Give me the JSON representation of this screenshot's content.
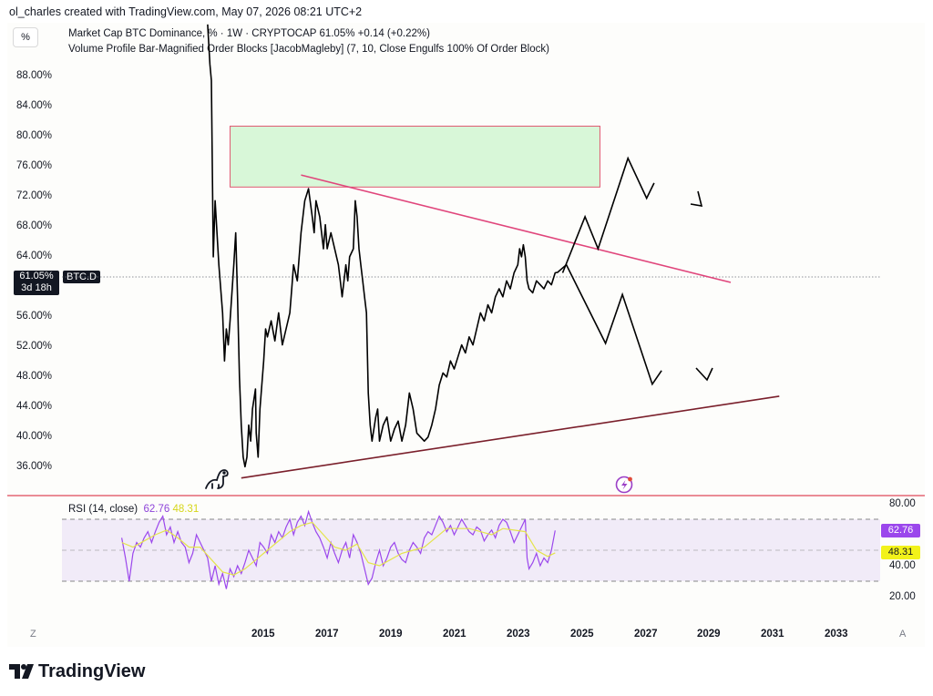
{
  "header": {
    "credit": "ol_charles created with TradingView.com, May 07, 2026 08:21 UTC+2"
  },
  "toolbar": {
    "percent_label": "%"
  },
  "legend": {
    "line1": "Market Cap BTC Dominance, % · 1W · CRYPTOCAP  61.05%  +0.14 (+0.22%)",
    "line2": "Volume Profile Bar-Magnified Order Blocks [JacobMagleby] (7, 10, Close Engulfs 100% Of Order Block)"
  },
  "price_badge": {
    "value": "61.05%",
    "countdown": "3d 18h",
    "symbol": "BTC.D"
  },
  "y_ticks": [
    "88.00%",
    "84.00%",
    "80.00%",
    "76.00%",
    "72.00%",
    "68.00%",
    "64.00%",
    "56.00%",
    "52.00%",
    "48.00%",
    "44.00%",
    "40.00%",
    "36.00%"
  ],
  "x_ticks": [
    "2015",
    "2017",
    "2019",
    "2021",
    "2023",
    "2025",
    "2027",
    "2029",
    "2031",
    "2033"
  ],
  "rsi": {
    "label": "RSI (14, close)",
    "value_rsi": "62.76",
    "value_ma": "48.31",
    "ticks": [
      "80.00",
      "40.00",
      "20.00"
    ],
    "upper_band": 70,
    "middle_band": 50,
    "lower_band": 30
  },
  "buttons": {
    "z": "Z",
    "a": "A"
  },
  "brand": {
    "name": "TradingView"
  },
  "colors": {
    "price_line": "#000000",
    "order_block_fill": "#d8f7d8",
    "order_block_border": "#e05a72",
    "resistance_line": "#e0457b",
    "support_line": "#7a1f2b",
    "rsi_line": "#9b47ec",
    "rsi_ma_line": "#e4e44a",
    "divider": "#e04a5a"
  },
  "chart_data": {
    "type": "line",
    "title": "Market Cap BTC Dominance, % · 1W · CRYPTOCAP",
    "ylabel": "",
    "xlabel": "",
    "ylim": [
      33.2,
      92.2
    ],
    "xlim": [
      2013.1,
      2035.0
    ],
    "series": [
      {
        "name": "BTC.D",
        "points": [
          [
            2017.0,
            92.0
          ],
          [
            2017.06,
            87.0
          ],
          [
            2017.1,
            85.0
          ],
          [
            2017.15,
            63.0
          ],
          [
            2017.2,
            70.0
          ],
          [
            2017.3,
            62.0
          ],
          [
            2017.4,
            56.0
          ],
          [
            2017.45,
            50.0
          ],
          [
            2017.5,
            54.0
          ],
          [
            2017.55,
            52.0
          ],
          [
            2017.6,
            55.0
          ],
          [
            2017.7,
            62.0
          ],
          [
            2017.75,
            66.0
          ],
          [
            2017.8,
            58.0
          ],
          [
            2017.85,
            48.0
          ],
          [
            2017.9,
            42.0
          ],
          [
            2017.95,
            38.0
          ],
          [
            2018.0,
            36.8
          ],
          [
            2018.05,
            38.0
          ],
          [
            2018.1,
            42.0
          ],
          [
            2018.15,
            40.0
          ],
          [
            2018.2,
            44.0
          ],
          [
            2018.28,
            46.5
          ],
          [
            2018.3,
            41.0
          ],
          [
            2018.35,
            38.0
          ],
          [
            2018.4,
            44.0
          ],
          [
            2018.5,
            50.0
          ],
          [
            2018.55,
            54.0
          ],
          [
            2018.6,
            53.0
          ],
          [
            2018.7,
            55.0
          ],
          [
            2018.8,
            52.5
          ],
          [
            2018.9,
            56.0
          ],
          [
            2019.0,
            52.0
          ],
          [
            2019.1,
            54.0
          ],
          [
            2019.2,
            56.0
          ],
          [
            2019.25,
            59.0
          ],
          [
            2019.3,
            62.0
          ],
          [
            2019.4,
            60.0
          ],
          [
            2019.5,
            66.0
          ],
          [
            2019.6,
            70.0
          ],
          [
            2019.7,
            71.5
          ],
          [
            2019.8,
            68.0
          ],
          [
            2019.85,
            66.0
          ],
          [
            2019.9,
            70.0
          ],
          [
            2020.0,
            68.0
          ],
          [
            2020.1,
            64.0
          ],
          [
            2020.15,
            67.0
          ],
          [
            2020.2,
            64.0
          ],
          [
            2020.3,
            66.0
          ],
          [
            2020.4,
            64.0
          ],
          [
            2020.5,
            62.0
          ],
          [
            2020.55,
            60.0
          ],
          [
            2020.6,
            58.0
          ],
          [
            2020.7,
            62.0
          ],
          [
            2020.75,
            60.0
          ],
          [
            2020.8,
            63.0
          ],
          [
            2020.9,
            64.0
          ],
          [
            2020.95,
            70.0
          ],
          [
            2021.0,
            68.0
          ],
          [
            2021.05,
            64.0
          ],
          [
            2021.1,
            62.0
          ],
          [
            2021.15,
            60.0
          ],
          [
            2021.2,
            58.0
          ],
          [
            2021.25,
            56.0
          ],
          [
            2021.3,
            46.0
          ],
          [
            2021.35,
            42.0
          ],
          [
            2021.4,
            40.0
          ],
          [
            2021.5,
            43.0
          ],
          [
            2021.55,
            44.0
          ],
          [
            2021.6,
            40.0
          ],
          [
            2021.7,
            42.0
          ],
          [
            2021.8,
            43.0
          ],
          [
            2021.9,
            40.0
          ],
          [
            2022.0,
            41.5
          ],
          [
            2022.1,
            42.5
          ],
          [
            2022.2,
            40.0
          ],
          [
            2022.3,
            42.0
          ],
          [
            2022.4,
            46.0
          ],
          [
            2022.5,
            44.0
          ],
          [
            2022.6,
            41.0
          ],
          [
            2022.7,
            40.5
          ],
          [
            2022.8,
            40.0
          ],
          [
            2022.9,
            40.5
          ],
          [
            2023.0,
            42.0
          ],
          [
            2023.1,
            44.0
          ],
          [
            2023.2,
            47.0
          ],
          [
            2023.3,
            48.5
          ],
          [
            2023.4,
            48.0
          ],
          [
            2023.5,
            50.0
          ],
          [
            2023.6,
            49.0
          ],
          [
            2023.7,
            50.5
          ],
          [
            2023.8,
            52.0
          ],
          [
            2023.9,
            51.0
          ],
          [
            2024.0,
            53.0
          ],
          [
            2024.1,
            52.0
          ],
          [
            2024.2,
            54.0
          ],
          [
            2024.3,
            56.0
          ],
          [
            2024.4,
            55.0
          ],
          [
            2024.5,
            57.0
          ],
          [
            2024.6,
            56.0
          ],
          [
            2024.7,
            58.0
          ],
          [
            2024.8,
            59.0
          ],
          [
            2024.9,
            58.0
          ],
          [
            2025.0,
            60.0
          ],
          [
            2025.1,
            59.0
          ],
          [
            2025.2,
            61.0
          ],
          [
            2025.3,
            62.0
          ],
          [
            2025.35,
            64.0
          ],
          [
            2025.4,
            63.0
          ],
          [
            2025.45,
            64.5
          ],
          [
            2025.5,
            63.0
          ],
          [
            2025.55,
            60.0
          ],
          [
            2025.6,
            59.0
          ],
          [
            2025.7,
            58.5
          ],
          [
            2025.8,
            60.0
          ],
          [
            2025.9,
            59.5
          ],
          [
            2026.0,
            59.0
          ],
          [
            2026.1,
            60.0
          ],
          [
            2026.2,
            59.5
          ],
          [
            2026.3,
            61.0
          ],
          [
            2026.35,
            61.05
          ]
        ]
      }
    ],
    "drawings": {
      "order_block": {
        "x": [
          2017.6,
          2027.5
        ],
        "y": [
          71.7,
          79.3
        ]
      },
      "resistance": {
        "from": [
          2019.5,
          73.2
        ],
        "to": [
          2031.0,
          59.8
        ]
      },
      "support": {
        "from": [
          2017.9,
          35.4
        ],
        "to": [
          2032.3,
          45.6
        ]
      },
      "projection_up": [
        [
          2026.5,
          61.0
        ],
        [
          2027.1,
          68.0
        ],
        [
          2027.45,
          64.0
        ],
        [
          2028.25,
          75.3
        ],
        [
          2028.75,
          70.3
        ],
        [
          2028.95,
          72.2
        ]
      ],
      "projection_down": [
        [
          2026.35,
          61.0
        ],
        [
          2026.6,
          62.0
        ],
        [
          2027.65,
          52.2
        ],
        [
          2028.1,
          58.3
        ],
        [
          2028.9,
          47.1
        ],
        [
          2029.15,
          48.8
        ]
      ]
    },
    "rsi_series": {
      "name": "RSI (14, close)",
      "ylim": [
        10,
        85
      ],
      "points": [
        [
          2014.7,
          58
        ],
        [
          2014.8,
          45
        ],
        [
          2014.9,
          30
        ],
        [
          2015.0,
          48
        ],
        [
          2015.1,
          55
        ],
        [
          2015.2,
          52
        ],
        [
          2015.3,
          58
        ],
        [
          2015.4,
          62
        ],
        [
          2015.5,
          55
        ],
        [
          2015.6,
          62
        ],
        [
          2015.7,
          68
        ],
        [
          2015.8,
          72
        ],
        [
          2015.9,
          60
        ],
        [
          2016.0,
          65
        ],
        [
          2016.1,
          55
        ],
        [
          2016.2,
          62
        ],
        [
          2016.3,
          55
        ],
        [
          2016.4,
          52
        ],
        [
          2016.5,
          42
        ],
        [
          2016.6,
          48
        ],
        [
          2016.7,
          60
        ],
        [
          2016.8,
          55
        ],
        [
          2016.9,
          50
        ],
        [
          2017.0,
          45
        ],
        [
          2017.1,
          30
        ],
        [
          2017.2,
          40
        ],
        [
          2017.3,
          28
        ],
        [
          2017.4,
          35
        ],
        [
          2017.5,
          25
        ],
        [
          2017.6,
          38
        ],
        [
          2017.7,
          33
        ],
        [
          2017.8,
          40
        ],
        [
          2017.9,
          35
        ],
        [
          2018.0,
          42
        ],
        [
          2018.1,
          50
        ],
        [
          2018.2,
          45
        ],
        [
          2018.3,
          40
        ],
        [
          2018.4,
          55
        ],
        [
          2018.5,
          52
        ],
        [
          2018.6,
          48
        ],
        [
          2018.7,
          60
        ],
        [
          2018.8,
          55
        ],
        [
          2018.9,
          62
        ],
        [
          2019.0,
          58
        ],
        [
          2019.1,
          65
        ],
        [
          2019.2,
          70
        ],
        [
          2019.3,
          60
        ],
        [
          2019.4,
          68
        ],
        [
          2019.5,
          72
        ],
        [
          2019.6,
          66
        ],
        [
          2019.7,
          75
        ],
        [
          2019.8,
          68
        ],
        [
          2019.9,
          62
        ],
        [
          2020.0,
          58
        ],
        [
          2020.1,
          52
        ],
        [
          2020.2,
          45
        ],
        [
          2020.3,
          55
        ],
        [
          2020.4,
          48
        ],
        [
          2020.5,
          42
        ],
        [
          2020.6,
          50
        ],
        [
          2020.7,
          55
        ],
        [
          2020.8,
          45
        ],
        [
          2020.9,
          60
        ],
        [
          2021.0,
          55
        ],
        [
          2021.1,
          48
        ],
        [
          2021.2,
          38
        ],
        [
          2021.3,
          28
        ],
        [
          2021.4,
          32
        ],
        [
          2021.5,
          42
        ],
        [
          2021.6,
          50
        ],
        [
          2021.7,
          40
        ],
        [
          2021.8,
          45
        ],
        [
          2021.9,
          52
        ],
        [
          2022.0,
          55
        ],
        [
          2022.1,
          48
        ],
        [
          2022.2,
          44
        ],
        [
          2022.3,
          42
        ],
        [
          2022.4,
          50
        ],
        [
          2022.5,
          55
        ],
        [
          2022.6,
          52
        ],
        [
          2022.7,
          48
        ],
        [
          2022.8,
          58
        ],
        [
          2022.9,
          62
        ],
        [
          2023.0,
          60
        ],
        [
          2023.1,
          66
        ],
        [
          2023.2,
          72
        ],
        [
          2023.3,
          68
        ],
        [
          2023.4,
          62
        ],
        [
          2023.5,
          66
        ],
        [
          2023.6,
          60
        ],
        [
          2023.7,
          65
        ],
        [
          2023.8,
          70
        ],
        [
          2023.9,
          66
        ],
        [
          2024.0,
          62
        ],
        [
          2024.1,
          60
        ],
        [
          2024.2,
          65
        ],
        [
          2024.3,
          63
        ],
        [
          2024.4,
          56
        ],
        [
          2024.5,
          60
        ],
        [
          2024.6,
          63
        ],
        [
          2024.7,
          58
        ],
        [
          2024.8,
          66
        ],
        [
          2024.9,
          70
        ],
        [
          2025.0,
          68
        ],
        [
          2025.1,
          62
        ],
        [
          2025.2,
          55
        ],
        [
          2025.3,
          60
        ],
        [
          2025.4,
          65
        ],
        [
          2025.5,
          70
        ],
        [
          2025.55,
          45
        ],
        [
          2025.6,
          38
        ],
        [
          2025.7,
          42
        ],
        [
          2025.8,
          48
        ],
        [
          2025.9,
          40
        ],
        [
          2026.0,
          45
        ],
        [
          2026.1,
          42
        ],
        [
          2026.2,
          50
        ],
        [
          2026.3,
          62.76
        ]
      ],
      "ma_points": [
        [
          2014.7,
          55
        ],
        [
          2015.0,
          52
        ],
        [
          2015.3,
          56
        ],
        [
          2015.6,
          60
        ],
        [
          2015.9,
          63
        ],
        [
          2016.2,
          58
        ],
        [
          2016.5,
          52
        ],
        [
          2016.8,
          52
        ],
        [
          2017.1,
          44
        ],
        [
          2017.4,
          36
        ],
        [
          2017.7,
          34
        ],
        [
          2018.0,
          38
        ],
        [
          2018.3,
          44
        ],
        [
          2018.6,
          50
        ],
        [
          2018.9,
          56
        ],
        [
          2019.2,
          62
        ],
        [
          2019.5,
          66
        ],
        [
          2019.8,
          68
        ],
        [
          2020.1,
          60
        ],
        [
          2020.4,
          52
        ],
        [
          2020.7,
          50
        ],
        [
          2021.0,
          54
        ],
        [
          2021.3,
          42
        ],
        [
          2021.6,
          40
        ],
        [
          2021.9,
          44
        ],
        [
          2022.2,
          48
        ],
        [
          2022.5,
          50
        ],
        [
          2022.8,
          52
        ],
        [
          2023.1,
          58
        ],
        [
          2023.4,
          64
        ],
        [
          2023.7,
          64
        ],
        [
          2024.0,
          64
        ],
        [
          2024.3,
          62
        ],
        [
          2024.6,
          60
        ],
        [
          2024.9,
          64
        ],
        [
          2025.2,
          63
        ],
        [
          2025.5,
          62
        ],
        [
          2025.8,
          50
        ],
        [
          2026.1,
          46
        ],
        [
          2026.3,
          48.31
        ]
      ]
    }
  }
}
